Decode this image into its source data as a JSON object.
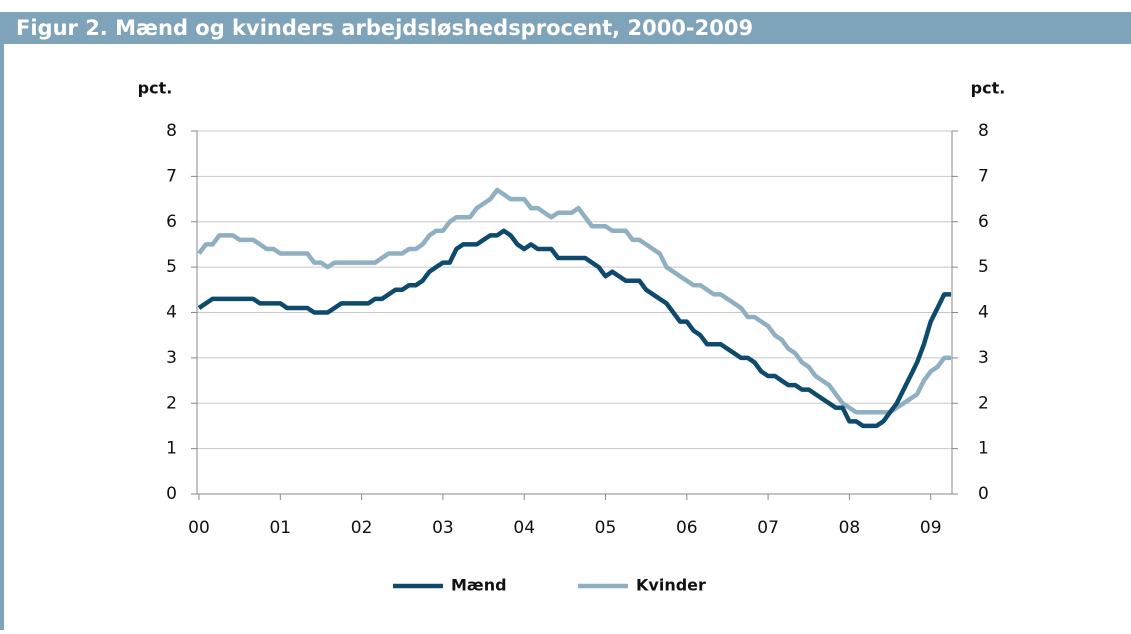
{
  "chart_data": {
    "type": "line",
    "title": "Figur 2. Mænd og kvinders arbejdsløshedsprocent, 2000-2009",
    "ylabel": "pct.",
    "y2label": "pct.",
    "categories": [
      "00",
      null,
      null,
      null,
      null,
      null,
      null,
      null,
      null,
      null,
      null,
      null,
      "01",
      null,
      null,
      null,
      null,
      null,
      null,
      null,
      null,
      null,
      null,
      null,
      "02",
      null,
      null,
      null,
      null,
      null,
      null,
      null,
      null,
      null,
      null,
      null,
      "03",
      null,
      null,
      null,
      null,
      null,
      null,
      null,
      null,
      null,
      null,
      null,
      "04",
      null,
      null,
      null,
      null,
      null,
      null,
      null,
      null,
      null,
      null,
      null,
      "05",
      null,
      null,
      null,
      null,
      null,
      null,
      null,
      null,
      null,
      null,
      null,
      "06",
      null,
      null,
      null,
      null,
      null,
      null,
      null,
      null,
      null,
      null,
      null,
      "07",
      null,
      null,
      null,
      null,
      null,
      null,
      null,
      null,
      null,
      null,
      null,
      "08",
      null,
      null,
      null,
      null,
      null,
      null,
      null,
      null,
      null,
      null,
      null,
      "09",
      null,
      null,
      null
    ],
    "series": [
      {
        "name": "Mænd",
        "color": "#0d4a6b",
        "values": [
          4.1,
          4.2,
          4.3,
          4.3,
          4.3,
          4.3,
          4.3,
          4.3,
          4.3,
          4.2,
          4.2,
          4.2,
          4.2,
          4.1,
          4.1,
          4.1,
          4.1,
          4.0,
          4.0,
          4.0,
          4.1,
          4.2,
          4.2,
          4.2,
          4.2,
          4.2,
          4.3,
          4.3,
          4.4,
          4.5,
          4.5,
          4.6,
          4.6,
          4.7,
          4.9,
          5.0,
          5.1,
          5.1,
          5.4,
          5.5,
          5.5,
          5.5,
          5.6,
          5.7,
          5.7,
          5.8,
          5.7,
          5.5,
          5.4,
          5.5,
          5.4,
          5.4,
          5.4,
          5.2,
          5.2,
          5.2,
          5.2,
          5.2,
          5.1,
          5.0,
          4.8,
          4.9,
          4.8,
          4.7,
          4.7,
          4.7,
          4.5,
          4.4,
          4.3,
          4.2,
          4.0,
          3.8,
          3.8,
          3.6,
          3.5,
          3.3,
          3.3,
          3.3,
          3.2,
          3.1,
          3.0,
          3.0,
          2.9,
          2.7,
          2.6,
          2.6,
          2.5,
          2.4,
          2.4,
          2.3,
          2.3,
          2.2,
          2.1,
          2.0,
          1.9,
          1.9,
          1.6,
          1.6,
          1.5,
          1.5,
          1.5,
          1.6,
          1.8,
          2.0,
          2.3,
          2.6,
          2.9,
          3.3,
          3.8,
          4.1,
          4.4,
          4.4
        ]
      },
      {
        "name": "Kvinder",
        "color": "#8fafc2",
        "values": [
          5.3,
          5.5,
          5.5,
          5.7,
          5.7,
          5.7,
          5.6,
          5.6,
          5.6,
          5.5,
          5.4,
          5.4,
          5.3,
          5.3,
          5.3,
          5.3,
          5.3,
          5.1,
          5.1,
          5.0,
          5.1,
          5.1,
          5.1,
          5.1,
          5.1,
          5.1,
          5.1,
          5.2,
          5.3,
          5.3,
          5.3,
          5.4,
          5.4,
          5.5,
          5.7,
          5.8,
          5.8,
          6.0,
          6.1,
          6.1,
          6.1,
          6.3,
          6.4,
          6.5,
          6.7,
          6.6,
          6.5,
          6.5,
          6.5,
          6.3,
          6.3,
          6.2,
          6.1,
          6.2,
          6.2,
          6.2,
          6.3,
          6.1,
          5.9,
          5.9,
          5.9,
          5.8,
          5.8,
          5.8,
          5.6,
          5.6,
          5.5,
          5.4,
          5.3,
          5.0,
          4.9,
          4.8,
          4.7,
          4.6,
          4.6,
          4.5,
          4.4,
          4.4,
          4.3,
          4.2,
          4.1,
          3.9,
          3.9,
          3.8,
          3.7,
          3.5,
          3.4,
          3.2,
          3.1,
          2.9,
          2.8,
          2.6,
          2.5,
          2.4,
          2.2,
          2.0,
          1.9,
          1.8,
          1.8,
          1.8,
          1.8,
          1.8,
          1.8,
          1.9,
          2.0,
          2.1,
          2.2,
          2.5,
          2.7,
          2.8,
          3.0,
          3.0
        ]
      }
    ],
    "ylim": [
      0,
      8
    ],
    "yticks": [
      0,
      1,
      2,
      3,
      4,
      5,
      6,
      7,
      8
    ],
    "y2lim": [
      0,
      8
    ],
    "y2ticks": [
      0,
      1,
      2,
      3,
      4,
      5,
      6,
      7,
      8
    ],
    "grid": true,
    "legend": "bottom"
  }
}
